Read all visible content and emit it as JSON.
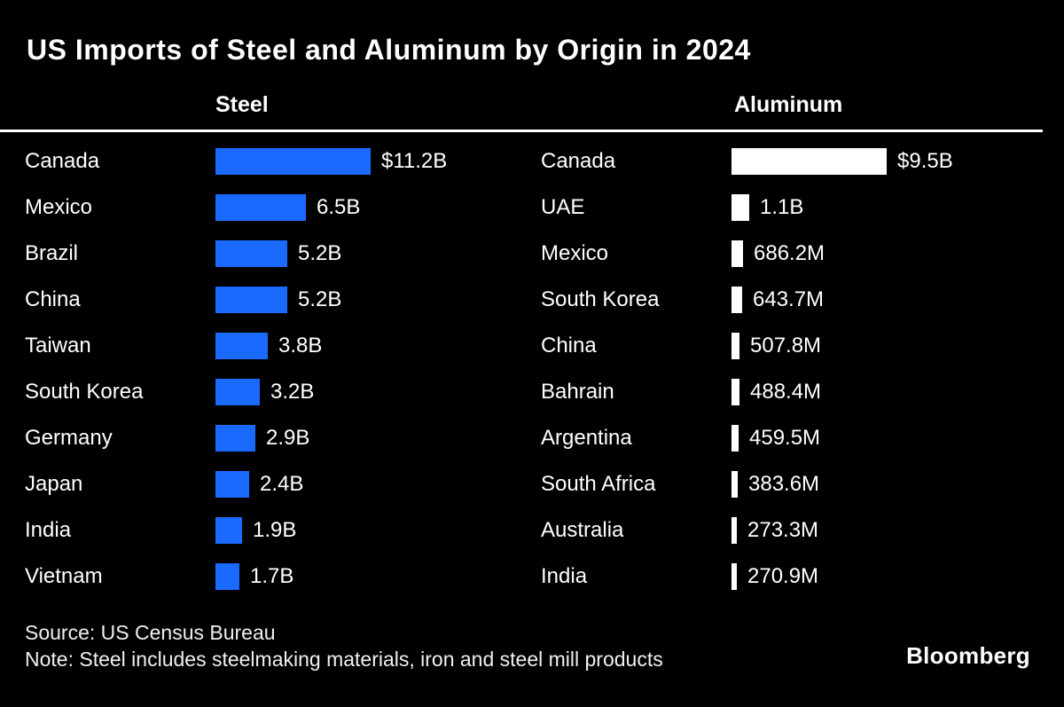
{
  "header": {
    "title": "US Imports of Steel and Aluminum by Origin in 2024"
  },
  "footer": {
    "source": "Source: US Census Bureau",
    "note": "Note: Steel includes steelmaking materials, iron and steel mill products",
    "brand": "Bloomberg"
  },
  "colors": {
    "background": "#000000",
    "text": "#ffffff",
    "steel_bar": "#1a6aff",
    "aluminum_bar": "#ffffff",
    "rule": "#ffffff"
  },
  "chart_data": [
    {
      "type": "bar",
      "orientation": "horizontal",
      "title": "Steel",
      "unit": "USD",
      "bar_color": "#1a6aff",
      "categories": [
        "Canada",
        "Mexico",
        "Brazil",
        "China",
        "Taiwan",
        "South Korea",
        "Germany",
        "Japan",
        "India",
        "Vietnam"
      ],
      "values": [
        11.2,
        6.5,
        5.2,
        5.2,
        3.8,
        3.2,
        2.9,
        2.4,
        1.9,
        1.7
      ],
      "value_labels": [
        "$11.2B",
        "6.5B",
        "5.2B",
        "5.2B",
        "3.8B",
        "3.2B",
        "2.9B",
        "2.4B",
        "1.9B",
        "1.7B"
      ],
      "xlim": [
        0,
        11.2
      ],
      "grid": false,
      "legend": false
    },
    {
      "type": "bar",
      "orientation": "horizontal",
      "title": "Aluminum",
      "unit": "USD",
      "bar_color": "#ffffff",
      "categories": [
        "Canada",
        "UAE",
        "Mexico",
        "South Korea",
        "China",
        "Bahrain",
        "Argentina",
        "South Africa",
        "Australia",
        "India"
      ],
      "values": [
        9.5,
        1.1,
        0.6862,
        0.6437,
        0.5078,
        0.4884,
        0.4595,
        0.3836,
        0.2733,
        0.2709
      ],
      "value_labels": [
        "$9.5B",
        "1.1B",
        "686.2M",
        "643.7M",
        "507.8M",
        "488.4M",
        "459.5M",
        "383.6M",
        "273.3M",
        "270.9M"
      ],
      "xlim": [
        0,
        9.5
      ],
      "grid": false,
      "legend": false
    }
  ]
}
